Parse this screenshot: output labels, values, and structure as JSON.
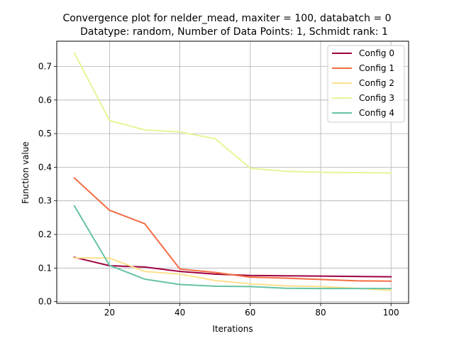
{
  "chart_data": {
    "type": "line",
    "title_line1": "Convergence plot for nelder_mead, maxiter = 100, databatch = 0",
    "title_line2": "Datatype: random, Number of Data Points: 1, Schmidt rank: 1",
    "xlabel": "Iterations",
    "ylabel": "Function value",
    "xlim": [
      5,
      105
    ],
    "ylim": [
      -0.005,
      0.775
    ],
    "xticks": [
      20,
      40,
      60,
      80,
      100
    ],
    "yticks": [
      0.0,
      0.1,
      0.2,
      0.3,
      0.4,
      0.5,
      0.6,
      0.7
    ],
    "grid": true,
    "legend_position": "top-right",
    "x": [
      10,
      20,
      30,
      40,
      50,
      60,
      70,
      80,
      90,
      100
    ],
    "series": [
      {
        "name": "Config 0",
        "color": "#9e0142",
        "values": [
          0.132,
          0.107,
          0.103,
          0.09,
          0.082,
          0.078,
          0.077,
          0.076,
          0.075,
          0.074
        ]
      },
      {
        "name": "Config 1",
        "color": "#f46d43",
        "values": [
          0.368,
          0.272,
          0.232,
          0.097,
          0.087,
          0.073,
          0.07,
          0.066,
          0.062,
          0.061
        ]
      },
      {
        "name": "Config 2",
        "color": "#fee08b",
        "values": [
          0.13,
          0.13,
          0.09,
          0.082,
          0.063,
          0.053,
          0.047,
          0.045,
          0.04,
          0.034
        ]
      },
      {
        "name": "Config 3",
        "color": "#e6f598",
        "values": [
          0.74,
          0.539,
          0.511,
          0.505,
          0.485,
          0.397,
          0.388,
          0.385,
          0.384,
          0.383
        ]
      },
      {
        "name": "Config 4",
        "color": "#66c2a5",
        "values": [
          0.285,
          0.108,
          0.067,
          0.051,
          0.046,
          0.045,
          0.04,
          0.039,
          0.039,
          0.039
        ]
      }
    ]
  }
}
